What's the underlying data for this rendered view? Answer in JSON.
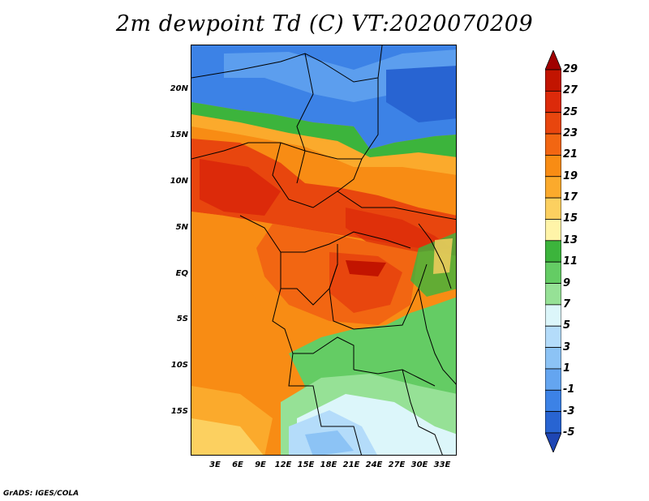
{
  "title": "2m dewpoint Td (C) VT:2020070209",
  "credit": "GrADS: IGES/COLA",
  "latitude_labels": [
    "20N",
    "15N",
    "10N",
    "5N",
    "EQ",
    "5S",
    "10S",
    "15S"
  ],
  "longitude_labels": [
    "3E",
    "6E",
    "9E",
    "12E",
    "15E",
    "18E",
    "21E",
    "24E",
    "27E",
    "30E",
    "33E"
  ],
  "colorbar": {
    "labels": [
      "29",
      "27",
      "25",
      "23",
      "21",
      "19",
      "17",
      "15",
      "13",
      "11",
      "9",
      "7",
      "5",
      "3",
      "1",
      "-1",
      "-3",
      "-5"
    ],
    "colors": [
      "#a00000",
      "#c21400",
      "#dc2a0a",
      "#e8460e",
      "#f26612",
      "#f88c14",
      "#fbaa2c",
      "#fcd060",
      "#fff4a8",
      "#3cb43c",
      "#64cc64",
      "#96e196",
      "#dcf6fa",
      "#b4dcfa",
      "#8cc3f5",
      "#64a5f0",
      "#3c82e6",
      "#2864d2",
      "#1e46b4"
    ]
  }
}
